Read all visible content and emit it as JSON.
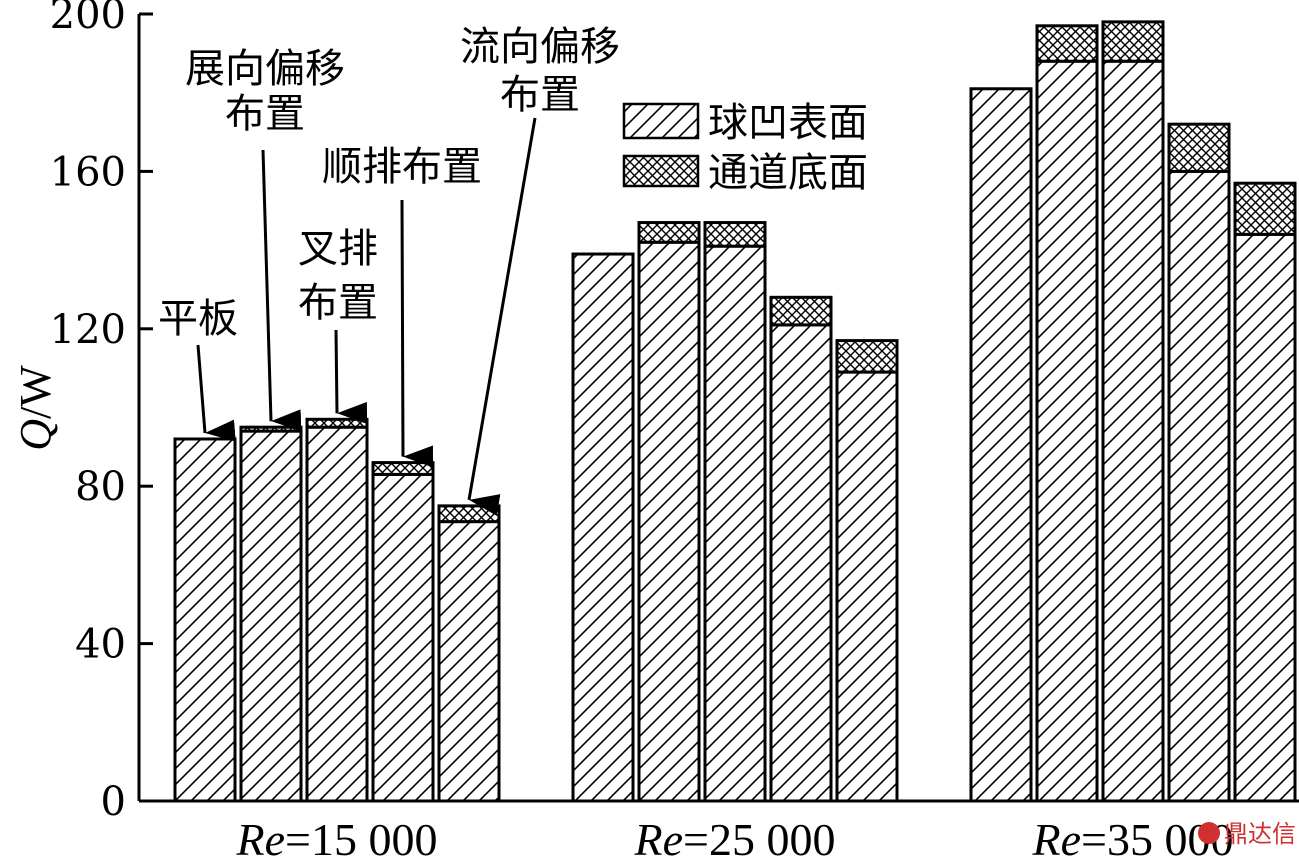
{
  "chart_data": {
    "type": "bar",
    "stacked": true,
    "ylabel_italic": "Q",
    "ylabel_unit": "/W",
    "ylim": [
      0,
      200
    ],
    "yticks": [
      "0",
      "40",
      "80",
      "120",
      "160",
      "200"
    ],
    "group_labels": [
      {
        "italic": "Re",
        "rest": "=15 000"
      },
      {
        "italic": "Re",
        "rest": "=25 000"
      },
      {
        "italic": "Re",
        "rest": "=35 000"
      }
    ],
    "bars_per_group": [
      "平板",
      "展向偏移布置",
      "叉排布置",
      "顺排布置",
      "流向偏移布置"
    ],
    "series": [
      {
        "name": "球凹表面",
        "pattern": "diagonal-hatch",
        "values": [
          [
            92,
            94,
            95,
            83,
            71
          ],
          [
            139,
            142,
            141,
            121,
            109
          ],
          [
            181,
            188,
            188,
            160,
            144
          ]
        ]
      },
      {
        "name": "通道底面",
        "pattern": "cross-hatch",
        "values": [
          [
            0,
            1,
            2,
            3,
            4
          ],
          [
            0,
            5,
            6,
            7,
            8
          ],
          [
            0,
            9,
            10,
            12,
            13
          ]
        ]
      }
    ],
    "annotations": [
      {
        "lines": [
          "平板"
        ]
      },
      {
        "lines": [
          "展向偏移",
          "布置"
        ]
      },
      {
        "lines": [
          "叉排",
          "布置"
        ]
      },
      {
        "lines": [
          "顺排布置"
        ]
      },
      {
        "lines": [
          "流向偏移",
          "布置"
        ]
      }
    ]
  },
  "watermark": "鼎达信"
}
